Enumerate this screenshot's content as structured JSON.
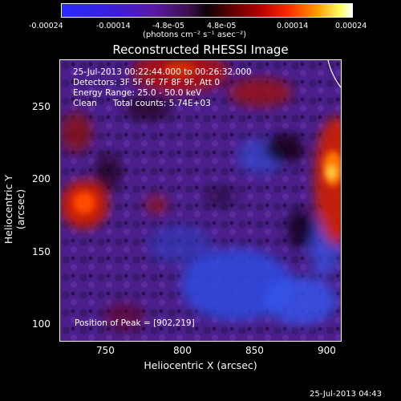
{
  "colorbar": {
    "ticks": [
      "-0.00024",
      "-0.00014",
      "-4.8e-05",
      "4.8e-05",
      "0.00014",
      "0.00024"
    ],
    "units": "(photons cm⁻² s⁻¹ asec⁻²)"
  },
  "title": "Reconstructed RHESSI Image",
  "info": {
    "time_range": "25-Jul-2013 00:22:44.000 to 00:26:32.000",
    "detectors": "Detectors: 3F 5F 6F 7F 8F 9F, Att 0",
    "energy_range": "Energy Range: 25.0 - 50.0 keV",
    "clean_counts": "Clean      Total counts: 5.74E+03",
    "peak": "Position of Peak = [902,219]"
  },
  "axes": {
    "xlabel": "Heliocentric X (arcsec)",
    "ylabel": "Heliocentric Y (arcsec)",
    "xticks": [
      "750",
      "800",
      "850",
      "900"
    ],
    "yticks": [
      "250",
      "200",
      "150",
      "100"
    ]
  },
  "timestamp": "25-Jul-2013 04:43"
}
